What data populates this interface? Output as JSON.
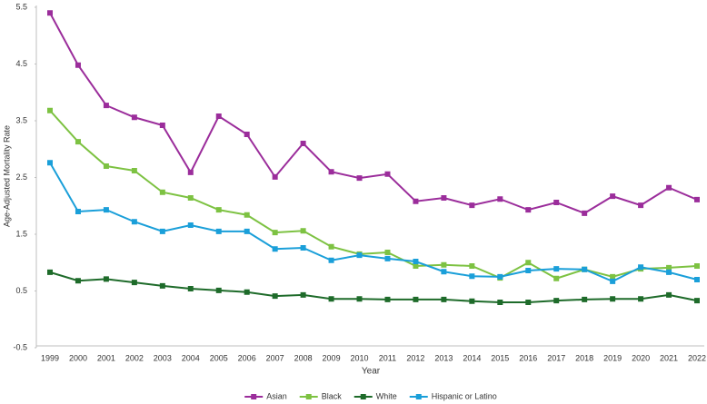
{
  "chart_data": {
    "type": "line",
    "y_label": "Age-Adjusted Mortality Rate",
    "x_label": "Year",
    "categories": [
      "1999",
      "2000",
      "2001",
      "2002",
      "2003",
      "2004",
      "2005",
      "2006",
      "2007",
      "2008",
      "2009",
      "2010",
      "2011",
      "2012",
      "2013",
      "2014",
      "2015",
      "2016",
      "2017",
      "2018",
      "2019",
      "2020",
      "2021",
      "2022"
    ],
    "series": [
      {
        "name": "Asian",
        "color": "#9b2d9b",
        "values": [
          5.4,
          4.48,
          3.77,
          3.56,
          3.42,
          2.59,
          3.58,
          3.26,
          2.51,
          3.1,
          2.6,
          2.49,
          2.56,
          2.08,
          2.14,
          2.01,
          2.12,
          1.93,
          2.06,
          1.87,
          2.17,
          2.01,
          2.32,
          2.11
        ]
      },
      {
        "name": "Black",
        "color": "#7dc242",
        "values": [
          3.68,
          3.13,
          2.7,
          2.62,
          2.24,
          2.14,
          1.93,
          1.84,
          1.53,
          1.56,
          1.28,
          1.15,
          1.18,
          0.94,
          0.96,
          0.94,
          0.73,
          1.0,
          0.72,
          0.88,
          0.75,
          0.89,
          0.91,
          0.94
        ]
      },
      {
        "name": "White",
        "color": "#1e6b2a",
        "values": [
          0.83,
          0.68,
          0.71,
          0.65,
          0.59,
          0.54,
          0.51,
          0.48,
          0.41,
          0.43,
          0.36,
          0.36,
          0.35,
          0.35,
          0.35,
          0.32,
          0.3,
          0.3,
          0.33,
          0.35,
          0.36,
          0.36,
          0.43,
          0.33
        ]
      },
      {
        "name": "Hispanic or Latino",
        "color": "#1a9fd9",
        "values": [
          2.76,
          1.9,
          1.93,
          1.72,
          1.55,
          1.66,
          1.55,
          1.55,
          1.24,
          1.26,
          1.04,
          1.13,
          1.07,
          1.02,
          0.84,
          0.76,
          0.75,
          0.86,
          0.89,
          0.88,
          0.67,
          0.92,
          0.83,
          0.7
        ]
      }
    ],
    "ylim": [
      -0.5,
      5.5
    ],
    "yticks": [
      -0.5,
      0.5,
      1.5,
      2.5,
      3.5,
      4.5,
      5.5
    ],
    "grid": false,
    "legend": "bottom"
  }
}
